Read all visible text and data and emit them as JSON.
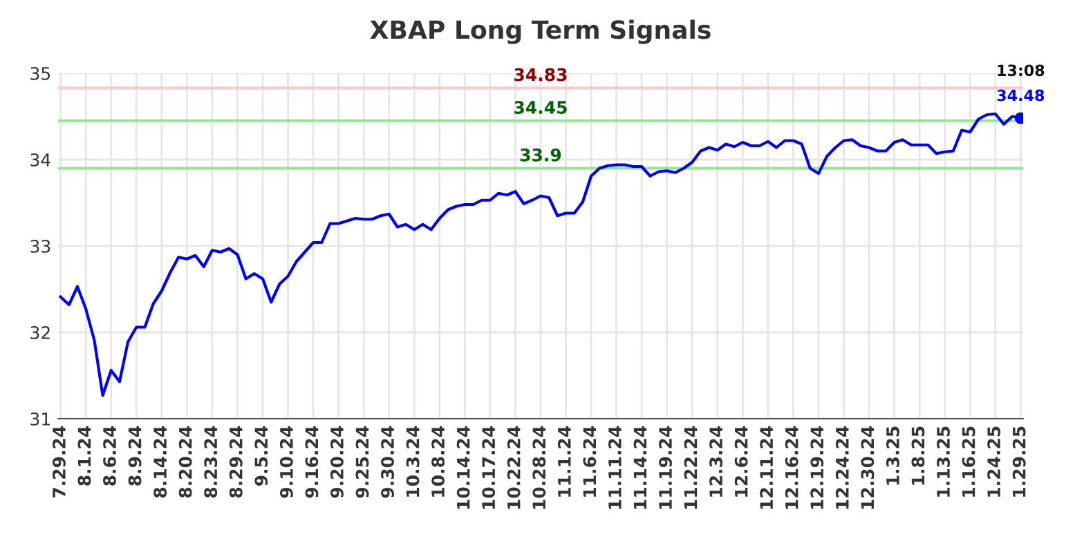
{
  "chart_data": {
    "type": "line",
    "title": "XBAP Long Term Signals",
    "categories": [
      "7.29.24",
      null,
      null,
      "8.1.24",
      null,
      null,
      "8.6.24",
      null,
      null,
      "8.9.24",
      null,
      null,
      "8.14.24",
      null,
      null,
      "8.20.24",
      null,
      null,
      "8.23.24",
      null,
      null,
      "8.29.24",
      null,
      null,
      "9.5.24",
      null,
      null,
      "9.10.24",
      null,
      null,
      "9.16.24",
      null,
      null,
      "9.20.24",
      null,
      null,
      "9.25.24",
      null,
      null,
      "9.30.24",
      null,
      null,
      "10.3.24",
      null,
      null,
      "10.8.24",
      null,
      null,
      "10.14.24",
      null,
      null,
      "10.17.24",
      null,
      null,
      "10.22.24",
      null,
      null,
      "10.28.24",
      null,
      null,
      "11.1.24",
      null,
      null,
      "11.6.24",
      null,
      null,
      "11.11.24",
      null,
      null,
      "11.14.24",
      null,
      null,
      "11.19.24",
      null,
      null,
      "11.22.24",
      null,
      null,
      "12.3.24",
      null,
      null,
      "12.6.24",
      null,
      null,
      "12.11.24",
      null,
      null,
      "12.16.24",
      null,
      null,
      "12.19.24",
      null,
      null,
      "12.24.24",
      null,
      null,
      "12.30.24",
      null,
      null,
      "1.3.25",
      null,
      null,
      "1.8.25",
      null,
      null,
      "1.13.25",
      null,
      null,
      "1.16.25",
      null,
      null,
      "1.24.25",
      null,
      null,
      "1.29.25"
    ],
    "series": [
      {
        "color": "#0000ff",
        "values": [
          32.41,
          32.32,
          32.53,
          32.27,
          31.91,
          31.27,
          31.56,
          31.43,
          31.89,
          32.06,
          32.06,
          32.33,
          32.48,
          32.69,
          32.87,
          32.85,
          32.89,
          32.76,
          32.95,
          32.93,
          32.97,
          32.9,
          32.62,
          32.68,
          32.62,
          32.35,
          32.56,
          32.65,
          32.82,
          32.93,
          33.04,
          33.04,
          33.26,
          33.26,
          33.29,
          33.32,
          33.31,
          33.31,
          33.35,
          33.37,
          33.22,
          33.25,
          33.19,
          33.25,
          33.19,
          33.32,
          33.42,
          33.46,
          33.48,
          33.48,
          33.53,
          33.53,
          33.61,
          33.59,
          33.63,
          33.49,
          33.53,
          33.58,
          33.56,
          33.35,
          33.38,
          33.38,
          33.51,
          33.81,
          33.9,
          33.93,
          33.94,
          33.94,
          33.92,
          33.92,
          33.81,
          33.86,
          33.87,
          33.85,
          33.9,
          33.97,
          34.1,
          34.14,
          34.11,
          34.18,
          34.15,
          34.2,
          34.16,
          34.16,
          34.21,
          34.14,
          34.22,
          34.22,
          34.18,
          33.9,
          33.84,
          34.04,
          34.14,
          34.22,
          34.23,
          34.16,
          34.14,
          34.1,
          34.1,
          34.2,
          34.23,
          34.17,
          34.17,
          34.17,
          34.07,
          34.09,
          34.1,
          34.34,
          34.32,
          34.47,
          34.52,
          34.53,
          34.41,
          34.5,
          34.48
        ]
      }
    ],
    "ylim": [
      31,
      35
    ],
    "yticks": [
      31,
      32,
      33,
      34,
      35
    ],
    "grid": true,
    "marker": "none",
    "line_style": "solid",
    "ref_lines": [
      {
        "axis": "y",
        "value": 34.83,
        "label": "34.83",
        "color": "#ffc8c8"
      },
      {
        "axis": "y",
        "value": 34.45,
        "label": "34.45",
        "color": "#90e890"
      },
      {
        "axis": "y",
        "value": 33.9,
        "label": "33.9",
        "color": "#90e890"
      }
    ],
    "annotations": [
      {
        "text": "13:08",
        "x": "1.29.25",
        "y": 34.48
      },
      {
        "text": "34.48",
        "x": "1.29.25",
        "y": 34.48
      }
    ]
  }
}
